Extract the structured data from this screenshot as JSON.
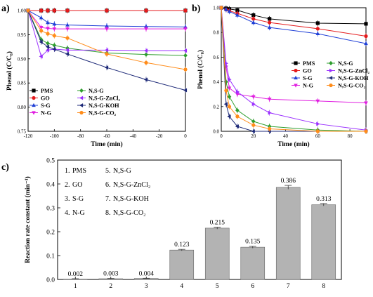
{
  "chart_data": [
    {
      "panel": "a)",
      "type": "line",
      "xlabel": "Time (min)",
      "ylabel": "Phenol (C/C₀)",
      "xlim": [
        -120,
        0
      ],
      "ylim": [
        0.75,
        1.0
      ],
      "xticks": [
        "-120",
        "-100",
        "-80",
        "-60",
        "-40",
        "-20",
        "0"
      ],
      "yticks": [
        "0.75",
        "0.80",
        "0.85",
        "0.90",
        "0.95",
        "1.00"
      ],
      "x": [
        -120,
        -110,
        -105,
        -100,
        -90,
        -60,
        -30,
        0
      ],
      "series": [
        {
          "name": "PMS",
          "color": "#000000",
          "marker": "square",
          "values": [
            1.0,
            1.0,
            1.0,
            1.0,
            1.0,
            1.0,
            1.0,
            1.0
          ]
        },
        {
          "name": "GO",
          "color": "#e41a1c",
          "marker": "circle",
          "values": [
            1.0,
            1.0,
            1.0,
            1.0,
            1.0,
            1.0,
            1.0,
            1.0
          ]
        },
        {
          "name": "S-G",
          "color": "#1f3fd6",
          "marker": "triangle-up",
          "values": [
            1.0,
            0.985,
            0.975,
            0.972,
            0.97,
            0.968,
            0.967,
            0.966
          ]
        },
        {
          "name": "N-G",
          "color": "#e01ee0",
          "marker": "triangle-down",
          "values": [
            1.0,
            0.965,
            0.963,
            0.962,
            0.962,
            0.962,
            0.962,
            0.962
          ]
        },
        {
          "name": "N,S-G",
          "color": "#2e9e2e",
          "marker": "diamond",
          "values": [
            1.0,
            0.94,
            0.932,
            0.928,
            0.922,
            0.912,
            0.909,
            0.907
          ]
        },
        {
          "name": "N,S-G-ZnCl₂",
          "color": "#9b30ff",
          "marker": "triangle-left",
          "values": [
            1.0,
            0.905,
            0.918,
            0.92,
            0.918,
            0.918,
            0.917,
            0.917
          ]
        },
        {
          "name": "N,S-G-KOH",
          "color": "#1e2a78",
          "marker": "triangle-left",
          "values": [
            1.0,
            0.935,
            0.925,
            0.92,
            0.91,
            0.882,
            0.857,
            0.835
          ]
        },
        {
          "name": "N,S-G-CO₂",
          "color": "#ff8c1a",
          "marker": "circle",
          "values": [
            1.0,
            0.958,
            0.952,
            0.948,
            0.943,
            0.91,
            0.892,
            0.878
          ]
        }
      ]
    },
    {
      "panel": "b)",
      "type": "line",
      "xlabel": "Time (min)",
      "ylabel": "Phenol (C/C₀)",
      "xlim": [
        0,
        90
      ],
      "ylim": [
        0,
        1.0
      ],
      "xticks": [
        "0",
        "20",
        "40",
        "60",
        "80"
      ],
      "yticks": [
        "0.0",
        "0.2",
        "0.4",
        "0.6",
        "0.8",
        "1.0"
      ],
      "x": [
        0,
        3,
        5,
        10,
        20,
        30,
        60,
        90
      ],
      "series": [
        {
          "name": "PMS",
          "color": "#000000",
          "marker": "square",
          "values": [
            1.0,
            0.995,
            0.99,
            0.98,
            0.94,
            0.91,
            0.875,
            0.87
          ]
        },
        {
          "name": "GO",
          "color": "#e41a1c",
          "marker": "circle",
          "values": [
            1.0,
            0.985,
            0.975,
            0.955,
            0.91,
            0.88,
            0.83,
            0.77
          ]
        },
        {
          "name": "S-G",
          "color": "#1f3fd6",
          "marker": "triangle-up",
          "values": [
            1.0,
            0.985,
            0.97,
            0.94,
            0.88,
            0.84,
            0.79,
            0.71
          ]
        },
        {
          "name": "N-G",
          "color": "#e01ee0",
          "marker": "triangle-down",
          "values": [
            1.0,
            0.52,
            0.35,
            0.3,
            0.28,
            0.26,
            0.245,
            0.23
          ]
        },
        {
          "name": "N,S-G",
          "color": "#2e9e2e",
          "marker": "diamond",
          "values": [
            1.0,
            0.4,
            0.28,
            0.17,
            0.08,
            0.04,
            0.01,
            0.0
          ]
        },
        {
          "name": "N,S-G-ZnCl₂",
          "color": "#9b30ff",
          "marker": "triangle-right",
          "values": [
            1.0,
            0.55,
            0.42,
            0.32,
            0.22,
            0.15,
            0.06,
            0.01
          ]
        },
        {
          "name": "N,S-G-KOH",
          "color": "#1e2a78",
          "marker": "triangle-left",
          "values": [
            1.0,
            0.22,
            0.12,
            0.04,
            0.0,
            0.0,
            0.0,
            0.0
          ]
        },
        {
          "name": "N,S-G-CO₂",
          "color": "#ff8c1a",
          "marker": "circle",
          "values": [
            1.0,
            0.33,
            0.2,
            0.12,
            0.05,
            0.02,
            0.0,
            0.0
          ]
        }
      ]
    },
    {
      "panel": "c)",
      "type": "bar",
      "xlabel": "",
      "ylabel": "Reaction rate constant (min⁻¹)",
      "ylim": [
        0,
        0.5
      ],
      "yticks": [
        "0.0",
        "0.1",
        "0.2",
        "0.3",
        "0.4",
        "0.5"
      ],
      "categories": [
        "1",
        "2",
        "3",
        "4",
        "5",
        "6",
        "7",
        "8"
      ],
      "values": [
        0.002,
        0.003,
        0.004,
        0.123,
        0.215,
        0.135,
        0.386,
        0.313
      ],
      "value_labels": [
        "0.002",
        "0.003",
        "0.004",
        "0.123",
        "0.215",
        "0.135",
        "0.386",
        "0.313"
      ],
      "errors": [
        0.001,
        0.001,
        0.001,
        0.003,
        0.004,
        0.004,
        0.008,
        0.005
      ],
      "bar_color": "#b3b3b3",
      "legend": [
        {
          "num": "1.",
          "name": "PMS"
        },
        {
          "num": "2.",
          "name": "GO"
        },
        {
          "num": "3.",
          "name": "S-G"
        },
        {
          "num": "4.",
          "name": "N-G"
        },
        {
          "num": "5.",
          "name": "N,S-G"
        },
        {
          "num": "6.",
          "name": "N,S-G-ZnCl₂"
        },
        {
          "num": "7.",
          "name": "N,S-G-KOH"
        },
        {
          "num": "8.",
          "name": "N,S-G-CO₂"
        }
      ]
    }
  ]
}
